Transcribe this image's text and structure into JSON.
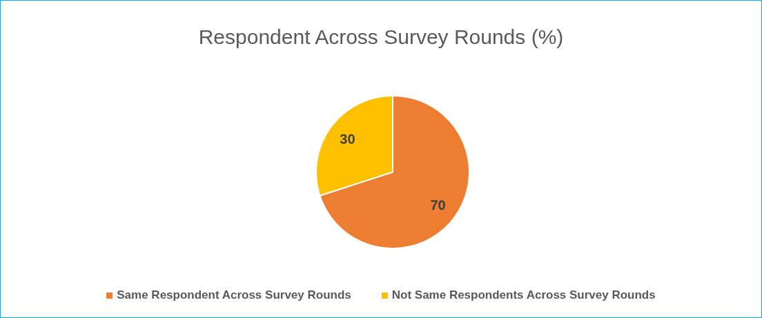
{
  "chart_data": {
    "type": "pie",
    "title": "Respondent Across Survey Rounds (%)",
    "categories": [
      "Same Respondent Across Survey Rounds",
      "Not Same Respondents Across Survey Rounds"
    ],
    "values": [
      70,
      30
    ],
    "colors": [
      "#ed7d31",
      "#ffc000"
    ],
    "data_labels": true,
    "legend": "bottom"
  }
}
